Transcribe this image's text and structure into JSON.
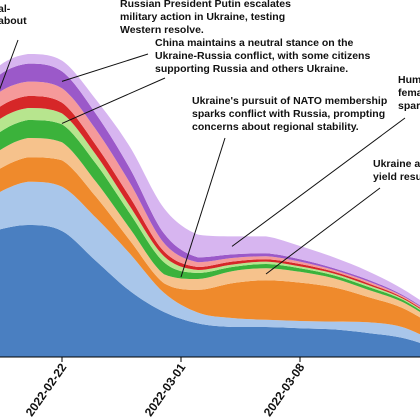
{
  "chart_data": {
    "type": "area",
    "stacked": true,
    "grid": false,
    "legend": "none",
    "x_ticks": [
      "2022-02-22",
      "2022-03-01",
      "2022-03-08"
    ],
    "x": [
      "2022-02-16",
      "2022-02-18",
      "2022-02-20",
      "2022-02-22",
      "2022-02-24",
      "2022-02-26",
      "2022-02-28",
      "2022-03-02",
      "2022-03-04",
      "2022-03-06",
      "2022-03-08",
      "2022-03-10",
      "2022-03-12",
      "2022-03-14",
      "2022-03-16"
    ],
    "series": [
      {
        "color": "#4a7fc1",
        "values": [
          19,
          21,
          22,
          21,
          16,
          11,
          7.5,
          5.6,
          5.0,
          5.0,
          4.8,
          4.6,
          4.0,
          3.2,
          1.5
        ]
      },
      {
        "color": "#a9c6ea",
        "values": [
          4.5,
          6,
          7.2,
          7.4,
          7.2,
          6.2,
          3.2,
          1.8,
          1.5,
          1.2,
          1.2,
          1.3,
          1.8,
          1.8,
          1.0
        ]
      },
      {
        "color": "#ef8a2c",
        "values": [
          3.0,
          3.8,
          4.1,
          4.4,
          3.5,
          2.2,
          1.6,
          3.8,
          5.8,
          6.6,
          6.4,
          5.7,
          4.2,
          3.2,
          2.5
        ]
      },
      {
        "color": "#f6c28c",
        "values": [
          2.0,
          3.0,
          3.2,
          3.0,
          2.5,
          2.0,
          1.5,
          1.8,
          2.0,
          2.0,
          1.8,
          1.5,
          1.2,
          1.0,
          0.8
        ]
      },
      {
        "color": "#3bb23b",
        "values": [
          2.5,
          3.0,
          3.0,
          3.0,
          3.0,
          2.5,
          2.0,
          1.0,
          0.7,
          0.7,
          0.6,
          0.5,
          0.5,
          0.4,
          0.3
        ]
      },
      {
        "color": "#b7e58e",
        "values": [
          2.0,
          2.2,
          2.0,
          1.8,
          1.5,
          1.2,
          1.0,
          0.5,
          0.4,
          0.4,
          0.3,
          0.3,
          0.3,
          0.2,
          0.2
        ]
      },
      {
        "color": "#d62728",
        "values": [
          1.5,
          2.0,
          2.0,
          1.8,
          1.6,
          1.5,
          0.8,
          0.5,
          0.5,
          0.4,
          0.4,
          0.3,
          0.3,
          0.2,
          0.2
        ]
      },
      {
        "color": "#f59a9a",
        "values": [
          2.5,
          2.5,
          2.4,
          2.4,
          2.6,
          2.4,
          1.4,
          0.8,
          0.6,
          0.5,
          0.4,
          0.3,
          0.3,
          0.2,
          0.2
        ]
      },
      {
        "color": "#9b59c9",
        "values": [
          2.0,
          2.8,
          3.0,
          2.8,
          2.6,
          2.4,
          1.6,
          0.8,
          0.6,
          0.5,
          0.4,
          0.3,
          0.3,
          0.2,
          0.2
        ]
      },
      {
        "color": "#d7b5f0",
        "values": [
          1.0,
          1.5,
          1.6,
          1.8,
          2.4,
          3.6,
          4.2,
          3.8,
          3.0,
          2.8,
          2.2,
          1.8,
          1.4,
          1.0,
          0.8
        ]
      }
    ],
    "annotations": [
      {
        "lines": [
          "al-",
          "about"
        ],
        "x": "2022-02-16",
        "stack_index": 3
      },
      {
        "lines": [
          "Russian President Putin escalates",
          "military action in Ukraine, testing",
          "Western resolve."
        ],
        "x": "2022-02-22",
        "stack_index": 8
      },
      {
        "lines": [
          "China maintains a neutral stance on the",
          "Ukraine-Russia conflict, with some citizens",
          "supporting Russia and others Ukraine."
        ],
        "x": "2022-02-22",
        "stack_index": 5
      },
      {
        "lines": [
          "Ukraine's pursuit of NATO membership",
          "sparks conflict with Russia, prompting",
          "concerns about regional stability."
        ],
        "x": "2022-03-01",
        "stack_index": 6
      },
      {
        "lines": [
          "Hum",
          "fema",
          "spar"
        ],
        "x": "2022-03-04",
        "stack_index": 9
      },
      {
        "lines": [
          "Ukraine ar",
          "yield resul"
        ],
        "x": "2022-03-06",
        "stack_index": 4
      }
    ]
  }
}
